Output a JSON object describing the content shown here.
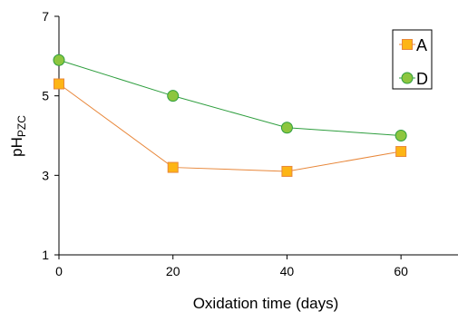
{
  "chart_data": {
    "type": "line",
    "title": "",
    "xlabel": "Oxidation time (days)",
    "ylabel_main": "pH",
    "ylabel_sub": "PZC",
    "xlim": [
      0,
      70
    ],
    "ylim": [
      1,
      7
    ],
    "x_ticks": [
      0,
      20,
      40,
      60
    ],
    "x_tick_labels": [
      "0",
      "20",
      "40",
      "60"
    ],
    "y_ticks": [
      1,
      3,
      5,
      7
    ],
    "y_tick_labels": [
      "1",
      "3",
      "5",
      "7"
    ],
    "grid": false,
    "legend_position": "top-right",
    "x": [
      0,
      20,
      40,
      60
    ],
    "series": [
      {
        "name": "A",
        "marker": "square",
        "marker_color": "#FDB515",
        "line_color": "#E8873A",
        "values": [
          5.3,
          3.2,
          3.1,
          3.6
        ]
      },
      {
        "name": "D",
        "marker": "circle",
        "marker_color": "#8DC63F",
        "line_color": "#2E9E3E",
        "values": [
          5.9,
          5.0,
          4.2,
          4.0
        ]
      }
    ]
  }
}
